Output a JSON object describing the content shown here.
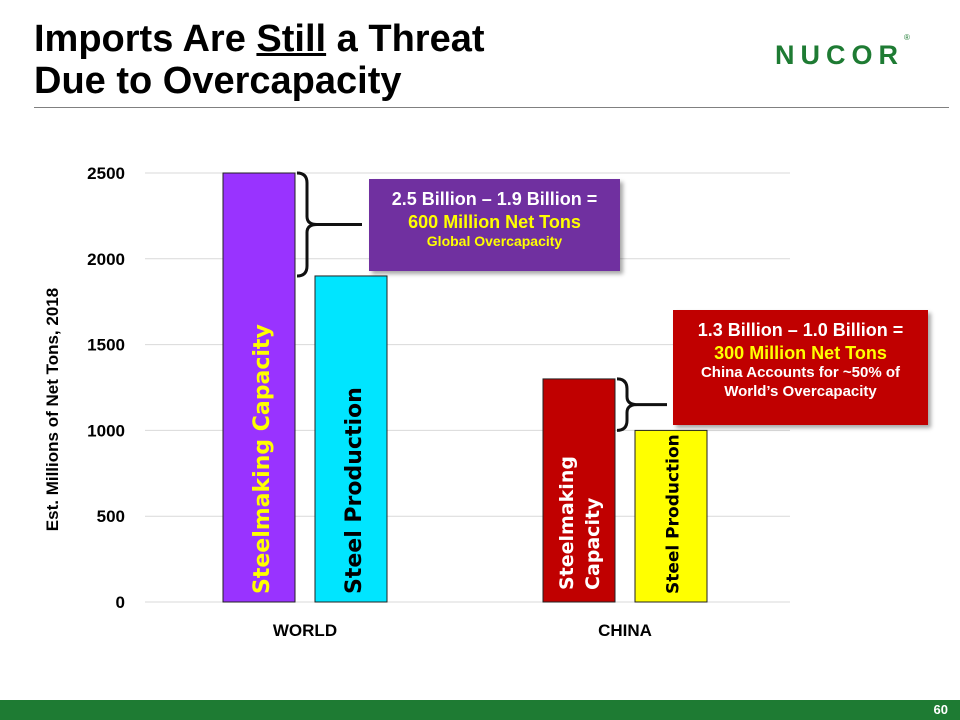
{
  "slide": {
    "title_part1": "Imports Are ",
    "title_underlined": "Still",
    "title_part2": " a Threat",
    "title_line2": "Due to Overcapacity",
    "logo": "NUCOR",
    "logo_mark": "®",
    "page_number": "60"
  },
  "chart_data": {
    "type": "bar",
    "ylabel": "Est. Millions of Net Tons, 2018",
    "ylim": [
      0,
      2500
    ],
    "yticks": [
      0,
      500,
      1000,
      1500,
      2000,
      2500
    ],
    "grid": true,
    "categories": [
      "WORLD",
      "CHINA"
    ],
    "series": [
      {
        "name": "Steelmaking Capacity",
        "values": [
          2500,
          1300
        ],
        "colors": [
          "#9933ff",
          "#c00000"
        ],
        "labels": [
          "Steelmaking Capacity",
          "Steelmaking Capacity"
        ]
      },
      {
        "name": "Steel Production",
        "values": [
          1900,
          1000
        ],
        "colors": [
          "#00e5ff",
          "#ffff00"
        ],
        "labels": [
          "Steel Production",
          "Steel Production"
        ]
      }
    ],
    "label_colors": [
      "#ffff00",
      "#000000",
      "#ffffff",
      "#000000"
    ]
  },
  "callouts": {
    "world": {
      "line1": "2.5 Billion – 1.9 Billion =",
      "line2": "600 Million Net Tons",
      "line3": "Global Overcapacity",
      "color": "#7030a0"
    },
    "china": {
      "line1": "1.3 Billion – 1.0 Billion =",
      "line2": "300 Million Net Tons",
      "line3": "China Accounts for ~50% of",
      "line4": "World’s Overcapacity",
      "color": "#c00000"
    }
  }
}
